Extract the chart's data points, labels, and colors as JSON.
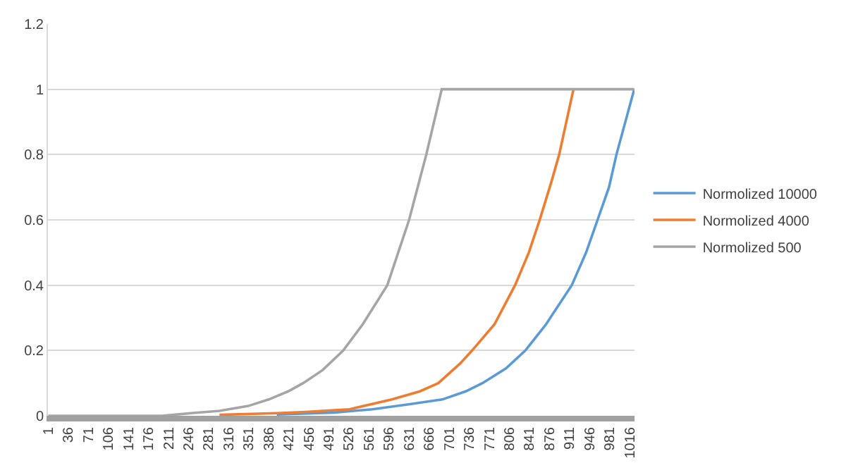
{
  "chart_data": {
    "type": "line",
    "xlim": [
      0.5,
      1024.5
    ],
    "ylim": [
      0,
      1.2
    ],
    "xticks": [
      1,
      36,
      71,
      106,
      141,
      176,
      211,
      246,
      281,
      316,
      351,
      386,
      421,
      456,
      491,
      526,
      561,
      596,
      631,
      666,
      701,
      736,
      771,
      806,
      841,
      876,
      911,
      946,
      981,
      1016
    ],
    "yticks": [
      0,
      0.2,
      0.4,
      0.6,
      0.8,
      1,
      1.2
    ],
    "grid": "y",
    "legend": "right",
    "marker": "none",
    "line_style": "solid",
    "series": [
      {
        "name": "Normolized 10000",
        "color": "#5b9bd5",
        "x": [
          400,
          500,
          567,
          630,
          689,
          730,
          759,
          800,
          834,
          870,
          915,
          940,
          960,
          980,
          993,
          1024
        ],
        "values": [
          0.004,
          0.01,
          0.02,
          0.035,
          0.05,
          0.075,
          0.1,
          0.145,
          0.2,
          0.28,
          0.4,
          0.5,
          0.6,
          0.7,
          0.8,
          1
        ]
      },
      {
        "name": "Normolized 4000",
        "color": "#ed7d31",
        "x": [
          300,
          400,
          450,
          527,
          601,
          650,
          682,
          720,
          741,
          780,
          816,
          840,
          859,
          880,
          893,
          918
        ],
        "values": [
          0.003,
          0.008,
          0.012,
          0.02,
          0.05,
          0.075,
          0.1,
          0.16,
          0.2,
          0.28,
          0.4,
          0.5,
          0.6,
          0.72,
          0.8,
          1
        ]
      },
      {
        "name": "Normolized 500",
        "color": "#a5a5a5",
        "x": [
          1,
          100,
          200,
          250,
          300,
          350,
          386,
          420,
          446,
          480,
          516,
          550,
          593,
          631,
          661,
          688,
          750,
          850,
          950,
          1024
        ],
        "values": [
          0,
          0,
          0,
          0.008,
          0.015,
          0.03,
          0.05,
          0.075,
          0.1,
          0.14,
          0.2,
          0.28,
          0.4,
          0.6,
          0.8,
          1,
          1,
          1,
          1,
          1
        ]
      }
    ]
  }
}
